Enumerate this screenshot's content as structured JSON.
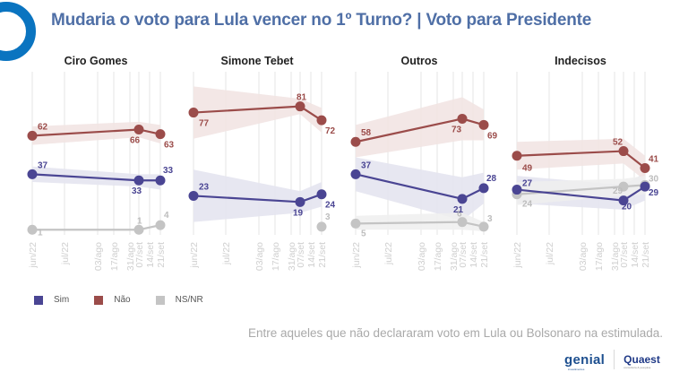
{
  "header": {
    "title": "Mudaria o voto para Lula vencer no 1º Turno? | Voto para Presidente",
    "logo_icon": "ring-logo-icon"
  },
  "colors": {
    "sim": "#4a4593",
    "nao": "#9b4c4a",
    "nsnr": "#c4c4c4",
    "sim_band": "#e3e3ef",
    "nao_band": "#f1e3e2",
    "nsnr_band": "#efefef",
    "title": "#4f6fa6",
    "brand_blue": "#0a74c0"
  },
  "legend": {
    "items": [
      {
        "label": "Sim",
        "key": "sim"
      },
      {
        "label": "Não",
        "key": "nao"
      },
      {
        "label": "NS/NR",
        "key": "nsnr"
      }
    ]
  },
  "footnote": "Entre aqueles que não declararam voto em Lula ou Bolsonaro na estimulada.",
  "brands": {
    "genial": "genial",
    "genial_sub": "investimentos",
    "quaest": "Quaest",
    "quaest_sub": "consultoria & pesquisa"
  },
  "chart_data": [
    {
      "type": "line",
      "title": "Ciro Gomes",
      "x_ticks": [
        "jun/22",
        "jul/22",
        "03/ago",
        "17/ago",
        "31/ago",
        "07/set",
        "14/set",
        "21/set"
      ],
      "x": [
        "jun/22",
        "07/set",
        "21/set"
      ],
      "series": [
        {
          "name": "Sim",
          "key": "sim",
          "values": [
            37,
            33,
            33
          ],
          "band": [
            [
              32,
              42
            ],
            [
              29,
              37
            ],
            [
              27,
              37
            ]
          ]
        },
        {
          "name": "Não",
          "key": "nao",
          "values": [
            62,
            66,
            63
          ],
          "band": [
            [
              56,
              68
            ],
            [
              61,
              71
            ],
            [
              57,
              69
            ]
          ]
        },
        {
          "name": "NS/NR",
          "key": "nsnr",
          "values": [
            1,
            1,
            4
          ],
          "band": null
        }
      ],
      "ylim": [
        0,
        100
      ],
      "grid": "vertical"
    },
    {
      "type": "line",
      "title": "Simone Tebet",
      "x_ticks": [
        "jun/22",
        "jul/22",
        "03/ago",
        "17/ago",
        "31/ago",
        "07/set",
        "14/set",
        "21/set"
      ],
      "x": [
        "jun/22",
        "07/set",
        "21/set"
      ],
      "series": [
        {
          "name": "Sim",
          "key": "sim",
          "values": [
            23,
            19,
            24
          ],
          "band": [
            [
              6,
              40
            ],
            [
              12,
              26
            ],
            [
              16,
              32
            ]
          ]
        },
        {
          "name": "Não",
          "key": "nao",
          "values": [
            77,
            81,
            72
          ],
          "band": [
            [
              60,
              94
            ],
            [
              76,
              86
            ],
            [
              64,
              80
            ]
          ]
        },
        {
          "name": "NS/NR",
          "key": "nsnr",
          "values": [
            null,
            null,
            3
          ],
          "band": null
        }
      ],
      "ylim": [
        0,
        100
      ],
      "grid": "vertical"
    },
    {
      "type": "line",
      "title": "Outros",
      "x_ticks": [
        "jun/22",
        "jul/22",
        "03/ago",
        "17/ago",
        "31/ago",
        "07/set",
        "14/set",
        "21/set"
      ],
      "x": [
        "jun/22",
        "07/set",
        "21/set"
      ],
      "series": [
        {
          "name": "Sim",
          "key": "sim",
          "values": [
            37,
            21,
            28
          ],
          "band": [
            [
              26,
              48
            ],
            [
              7,
              35
            ],
            [
              18,
              38
            ]
          ]
        },
        {
          "name": "Não",
          "key": "nao",
          "values": [
            58,
            73,
            69
          ],
          "band": [
            [
              48,
              69
            ],
            [
              59,
              87
            ],
            [
              59,
              79
            ]
          ]
        },
        {
          "name": "NS/NR",
          "key": "nsnr",
          "values": [
            5,
            6,
            3
          ],
          "band": [
            [
              1,
              10
            ],
            [
              1,
              12
            ],
            [
              0,
              6
            ]
          ]
        }
      ],
      "ylim": [
        0,
        100
      ],
      "grid": "vertical"
    },
    {
      "type": "line",
      "title": "Indecisos",
      "x_ticks": [
        "jun/22",
        "jul/22",
        "03/ago",
        "17/ago",
        "31/ago",
        "07/set",
        "14/set",
        "21/set"
      ],
      "x": [
        "jun/22",
        "07/set",
        "21/set"
      ],
      "series": [
        {
          "name": "Sim",
          "key": "sim",
          "values": [
            27,
            20,
            29
          ],
          "band": [
            [
              18,
              36
            ],
            [
              14,
              30
            ],
            [
              20,
              38
            ]
          ]
        },
        {
          "name": "Não",
          "key": "nao",
          "values": [
            49,
            52,
            41
          ],
          "band": [
            [
              40,
              58
            ],
            [
              44,
              60
            ],
            [
              33,
              49
            ]
          ]
        },
        {
          "name": "NS/NR",
          "key": "nsnr",
          "values": [
            24,
            29,
            30
          ],
          "band": [
            [
              17,
              32
            ],
            [
              23,
              34
            ],
            [
              24,
              36
            ]
          ]
        }
      ],
      "ylim": [
        0,
        100
      ],
      "grid": "vertical"
    }
  ]
}
